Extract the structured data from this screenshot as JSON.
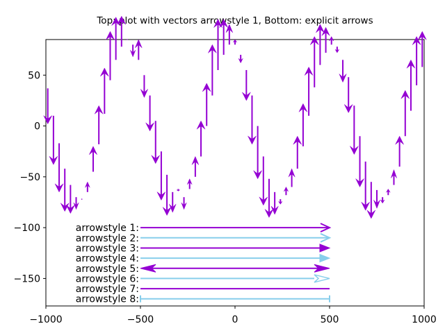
{
  "chart_data": {
    "type": "vector",
    "title": "Top: plot with vectors arrowstyle 1, Bottom: explicit arrows",
    "xlabel": "",
    "ylabel": "",
    "xlim": [
      -1000,
      1000
    ],
    "ylim": [
      -177,
      85
    ],
    "xticks": [
      -1000,
      -500,
      0,
      500,
      1000
    ],
    "xtick_labels": [
      "−1000",
      "−500",
      "0",
      "500",
      "1000"
    ],
    "yticks": [
      50,
      0,
      -50,
      -100,
      -150
    ],
    "ytick_labels": [
      "50",
      "0",
      "−50",
      "−100",
      "−150"
    ],
    "grid": false,
    "colors": {
      "purple": "#9400d3",
      "skyblue": "#87ceeb"
    },
    "vectors_series": {
      "name": "plot with vectors arrowstyle 1",
      "color": "#9400d3",
      "vectors": [
        {
          "x": -990,
          "y": 37,
          "dy": -35
        },
        {
          "x": -960,
          "y": 10,
          "dy": -48
        },
        {
          "x": -930,
          "y": -17,
          "dy": -48
        },
        {
          "x": -900,
          "y": -42,
          "dy": -42
        },
        {
          "x": -870,
          "y": -58,
          "dy": -28
        },
        {
          "x": -840,
          "y": -70,
          "dy": -12
        },
        {
          "x": -810,
          "y": -72,
          "dy": 0
        },
        {
          "x": -780,
          "y": -65,
          "dy": 10
        },
        {
          "x": -750,
          "y": -45,
          "dy": 25
        },
        {
          "x": -720,
          "y": -18,
          "dy": 38
        },
        {
          "x": -690,
          "y": 12,
          "dy": 45
        },
        {
          "x": -660,
          "y": 45,
          "dy": 48
        },
        {
          "x": -630,
          "y": 65,
          "dy": 42
        },
        {
          "x": -600,
          "y": 78,
          "dy": 30
        },
        {
          "x": -570,
          "y": 85,
          "dy": 0
        },
        {
          "x": -540,
          "y": 80,
          "dy": -12
        },
        {
          "x": -510,
          "y": 65,
          "dy": 20
        },
        {
          "x": -480,
          "y": 50,
          "dy": -22
        },
        {
          "x": -450,
          "y": 30,
          "dy": -35
        },
        {
          "x": -420,
          "y": 5,
          "dy": -42
        },
        {
          "x": -390,
          "y": -25,
          "dy": -48
        },
        {
          "x": -360,
          "y": -48,
          "dy": -40
        },
        {
          "x": -330,
          "y": -65,
          "dy": -20
        },
        {
          "x": -300,
          "y": -62,
          "dy": -2
        },
        {
          "x": -270,
          "y": -70,
          "dy": -12
        },
        {
          "x": -240,
          "y": -62,
          "dy": 10
        },
        {
          "x": -210,
          "y": -50,
          "dy": 20
        },
        {
          "x": -180,
          "y": -30,
          "dy": 35
        },
        {
          "x": -150,
          "y": 0,
          "dy": 42
        },
        {
          "x": -120,
          "y": 30,
          "dy": 50
        },
        {
          "x": -90,
          "y": 55,
          "dy": 50
        },
        {
          "x": -60,
          "y": 70,
          "dy": 35
        },
        {
          "x": -30,
          "y": 80,
          "dy": 20
        },
        {
          "x": 0,
          "y": 80,
          "dy": 5
        },
        {
          "x": 30,
          "y": 70,
          "dy": -8
        },
        {
          "x": 60,
          "y": 55,
          "dy": -30
        },
        {
          "x": 90,
          "y": 30,
          "dy": -48
        },
        {
          "x": 120,
          "y": 0,
          "dy": -52
        },
        {
          "x": 150,
          "y": -30,
          "dy": -48
        },
        {
          "x": 180,
          "y": -52,
          "dy": -38
        },
        {
          "x": 210,
          "y": -65,
          "dy": -22
        },
        {
          "x": 240,
          "y": -72,
          "dy": -5
        },
        {
          "x": 270,
          "y": -68,
          "dy": 8
        },
        {
          "x": 300,
          "y": -60,
          "dy": 18
        },
        {
          "x": 330,
          "y": -42,
          "dy": 32
        },
        {
          "x": 360,
          "y": -20,
          "dy": 42
        },
        {
          "x": 390,
          "y": 10,
          "dy": 48
        },
        {
          "x": 420,
          "y": 38,
          "dy": 50
        },
        {
          "x": 450,
          "y": 60,
          "dy": 40
        },
        {
          "x": 480,
          "y": 72,
          "dy": 25
        },
        {
          "x": 510,
          "y": 80,
          "dy": 8
        },
        {
          "x": 540,
          "y": 78,
          "dy": -6
        },
        {
          "x": 570,
          "y": 65,
          "dy": -22
        },
        {
          "x": 600,
          "y": 48,
          "dy": -35
        },
        {
          "x": 630,
          "y": 20,
          "dy": -48
        },
        {
          "x": 660,
          "y": -10,
          "dy": -50
        },
        {
          "x": 690,
          "y": -35,
          "dy": -48
        },
        {
          "x": 720,
          "y": -55,
          "dy": -36
        },
        {
          "x": 750,
          "y": -63,
          "dy": -18
        },
        {
          "x": 780,
          "y": -70,
          "dy": -6
        },
        {
          "x": 810,
          "y": -68,
          "dy": 6
        },
        {
          "x": 840,
          "y": -58,
          "dy": 15
        },
        {
          "x": 870,
          "y": -40,
          "dy": 30
        },
        {
          "x": 900,
          "y": -10,
          "dy": 45
        },
        {
          "x": 930,
          "y": 15,
          "dy": 50
        },
        {
          "x": 960,
          "y": 40,
          "dy": 48
        },
        {
          "x": 990,
          "y": 58,
          "dy": 35
        }
      ]
    },
    "arrows": [
      {
        "label": "arrowstyle 1:",
        "y": -100,
        "x_start": -500,
        "x_end": 500,
        "color": "#9400d3",
        "head_end": "open-v",
        "head_start": "none"
      },
      {
        "label": "arrowstyle 2:",
        "y": -110,
        "x_start": -500,
        "x_end": 500,
        "color": "#87ceeb",
        "head_end": "open-v",
        "head_start": "none"
      },
      {
        "label": "arrowstyle 3:",
        "y": -120,
        "x_start": -500,
        "x_end": 500,
        "color": "#9400d3",
        "head_end": "filled",
        "head_start": "none"
      },
      {
        "label": "arrowstyle 4:",
        "y": -130,
        "x_start": -500,
        "x_end": 500,
        "color": "#87ceeb",
        "head_end": "filled",
        "head_start": "none"
      },
      {
        "label": "arrowstyle 5:",
        "y": -140,
        "x_start": -500,
        "x_end": 500,
        "color": "#9400d3",
        "head_end": "filled-notch",
        "head_start": "filled-notch"
      },
      {
        "label": "arrowstyle 6:",
        "y": -150,
        "x_start": -500,
        "x_end": 500,
        "color": "#87ceeb",
        "head_end": "empty-notch",
        "head_start": "none"
      },
      {
        "label": "arrowstyle 7:",
        "y": -160,
        "x_start": -500,
        "x_end": 500,
        "color": "#9400d3",
        "head_end": "none",
        "head_start": "none"
      },
      {
        "label": "arrowstyle 8:",
        "y": -170,
        "x_start": -500,
        "x_end": 500,
        "color": "#87ceeb",
        "head_end": "bar",
        "head_start": "bar"
      }
    ]
  }
}
